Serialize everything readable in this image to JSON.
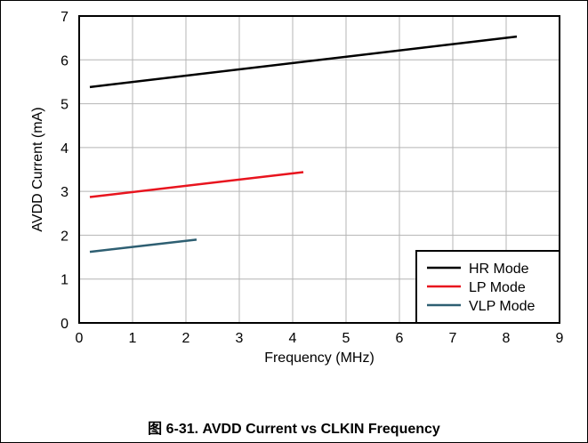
{
  "caption": "图 6-31. AVDD Current vs CLKIN Frequency",
  "chart_data": {
    "type": "line",
    "title": "",
    "xlabel": "Frequency (MHz)",
    "ylabel": "AVDD Current (mA)",
    "xlim": [
      0,
      9
    ],
    "ylim": [
      0,
      7
    ],
    "xticks": [
      "0",
      "1",
      "2",
      "3",
      "4",
      "5",
      "6",
      "7",
      "8",
      "9"
    ],
    "yticks": [
      "0",
      "1",
      "2",
      "3",
      "4",
      "5",
      "6",
      "7"
    ],
    "grid": true,
    "legend_position": "bottom-right",
    "series": [
      {
        "name": "HR Mode",
        "color": "#000000",
        "x": [
          0.2,
          8.2
        ],
        "y": [
          5.38,
          6.53
        ]
      },
      {
        "name": "LP Mode",
        "color": "#e8141e",
        "x": [
          0.2,
          4.2
        ],
        "y": [
          2.87,
          3.44
        ]
      },
      {
        "name": "VLP Mode",
        "color": "#2e5f72",
        "x": [
          0.2,
          2.2
        ],
        "y": [
          1.62,
          1.9
        ]
      }
    ]
  }
}
